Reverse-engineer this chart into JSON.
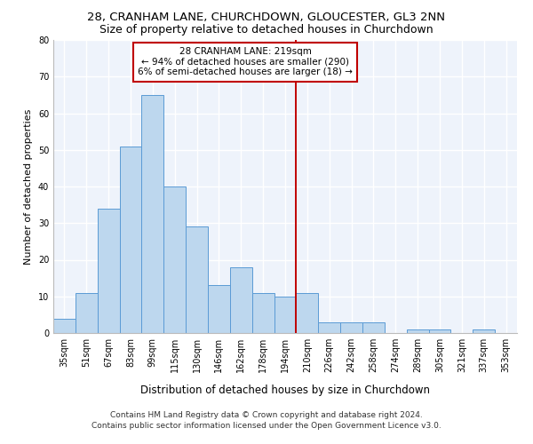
{
  "title1": "28, CRANHAM LANE, CHURCHDOWN, GLOUCESTER, GL3 2NN",
  "title2": "Size of property relative to detached houses in Churchdown",
  "xlabel": "Distribution of detached houses by size in Churchdown",
  "ylabel": "Number of detached properties",
  "bar_labels": [
    "35sqm",
    "51sqm",
    "67sqm",
    "83sqm",
    "99sqm",
    "115sqm",
    "130sqm",
    "146sqm",
    "162sqm",
    "178sqm",
    "194sqm",
    "210sqm",
    "226sqm",
    "242sqm",
    "258sqm",
    "274sqm",
    "289sqm",
    "305sqm",
    "321sqm",
    "337sqm",
    "353sqm"
  ],
  "bar_values": [
    4,
    11,
    34,
    51,
    65,
    40,
    29,
    13,
    18,
    11,
    10,
    11,
    3,
    3,
    3,
    0,
    1,
    1,
    0,
    1,
    0
  ],
  "bar_color": "#BDD7EE",
  "bar_edgecolor": "#5B9BD5",
  "vline_x": 10.5,
  "vline_color": "#C00000",
  "annotation_title": "28 CRANHAM LANE: 219sqm",
  "annotation_line1": "← 94% of detached houses are smaller (290)",
  "annotation_line2": "6% of semi-detached houses are larger (18) →",
  "annotation_box_color": "#C00000",
  "ylim": [
    0,
    80
  ],
  "yticks": [
    0,
    10,
    20,
    30,
    40,
    50,
    60,
    70,
    80
  ],
  "footer1": "Contains HM Land Registry data © Crown copyright and database right 2024.",
  "footer2": "Contains public sector information licensed under the Open Government Licence v3.0.",
  "bg_color": "#EEF3FB",
  "grid_color": "#FFFFFF",
  "title1_fontsize": 9.5,
  "title2_fontsize": 9,
  "xlabel_fontsize": 8.5,
  "ylabel_fontsize": 8,
  "tick_fontsize": 7,
  "annotation_fontsize": 7.5,
  "footer_fontsize": 6.5
}
